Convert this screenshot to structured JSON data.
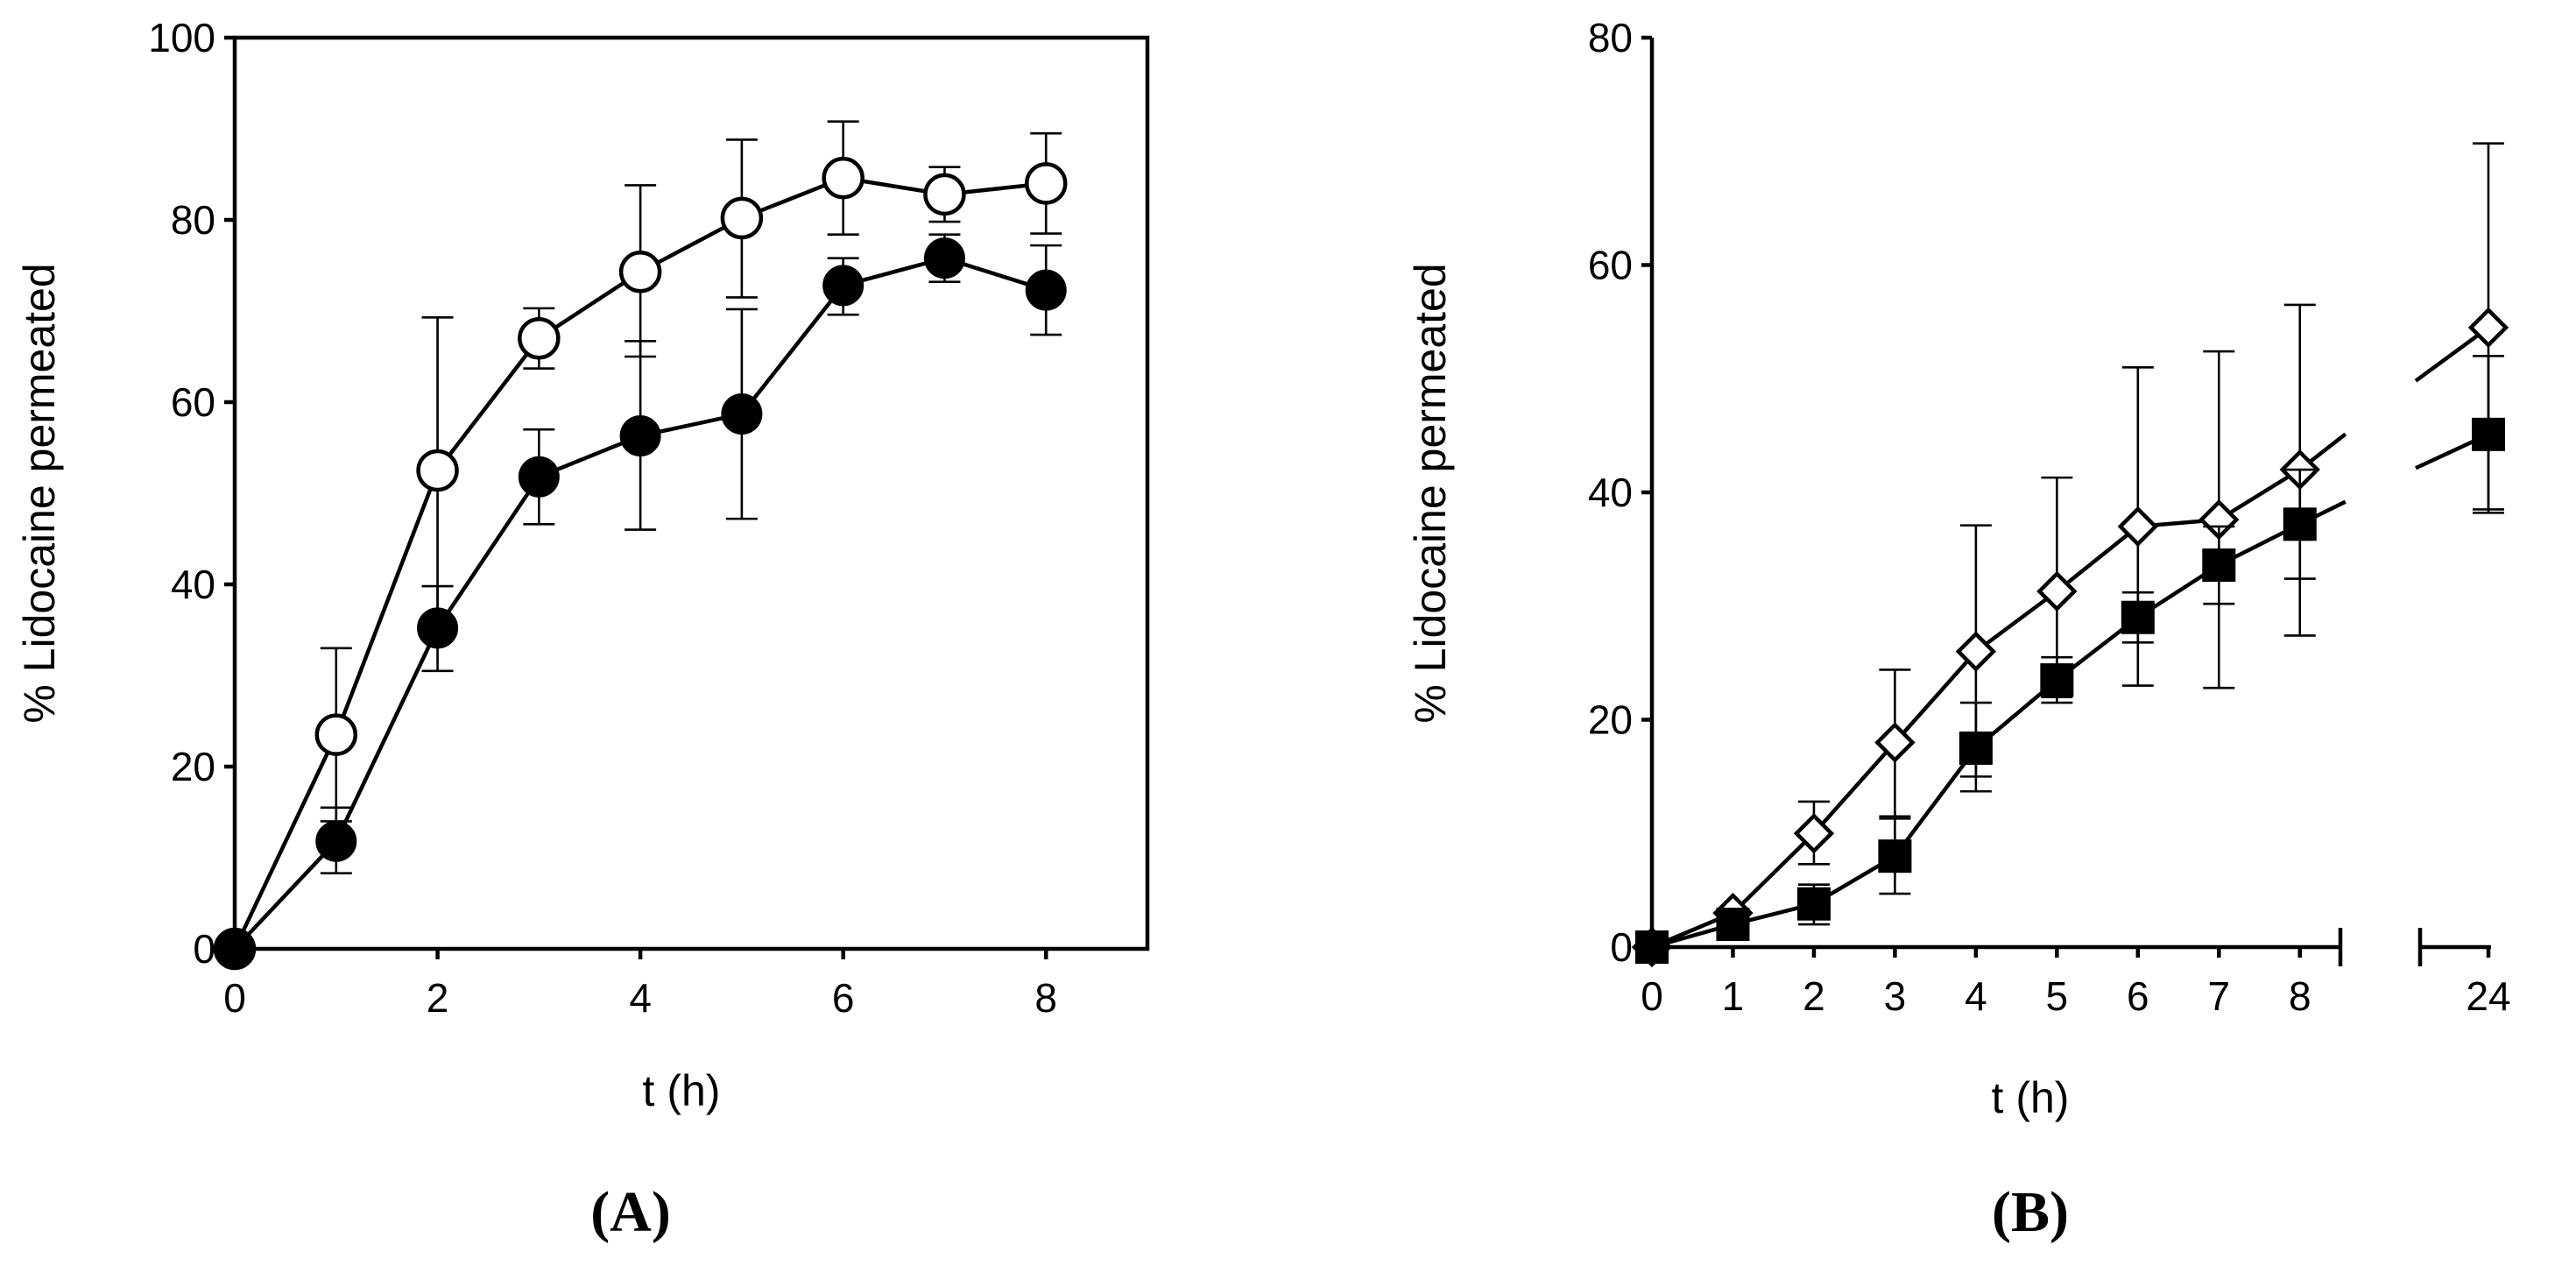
{
  "chart_data": [
    {
      "id": "A",
      "type": "line",
      "panel_label": "(A)",
      "title": "",
      "xlabel": "t (h)",
      "ylabel": "% Lidocaine permeated",
      "xlim": [
        0,
        9
      ],
      "ylim": [
        0,
        100
      ],
      "xticks": [
        0,
        2,
        4,
        6,
        8
      ],
      "yticks": [
        0,
        20,
        40,
        60,
        80,
        100
      ],
      "grid": false,
      "series": [
        {
          "name": "open circles",
          "marker": "circle-open",
          "x": [
            0,
            1,
            2,
            3,
            4,
            5,
            6,
            7,
            8
          ],
          "values": [
            0,
            23.5,
            52.5,
            67,
            74.3,
            80.2,
            84.6,
            82.8,
            84
          ],
          "err_upper": [
            0,
            33,
            69.3,
            70.3,
            83.8,
            88.8,
            90.8,
            85.8,
            89.5
          ],
          "err_lower": [
            0,
            14,
            35.7,
            63.7,
            65,
            71.5,
            78.4,
            79.8,
            78.5
          ]
        },
        {
          "name": "filled circles",
          "marker": "circle-filled",
          "x": [
            0,
            1,
            2,
            3,
            4,
            5,
            6,
            7,
            8
          ],
          "values": [
            0,
            11.8,
            35.2,
            51.8,
            56.3,
            58.7,
            72.8,
            75.8,
            72.3
          ],
          "err_upper": [
            0,
            15.5,
            39.8,
            57,
            66.7,
            70.2,
            75.8,
            78.4,
            77.2
          ],
          "err_lower": [
            0,
            8.3,
            30.5,
            46.6,
            46,
            47.2,
            69.6,
            73.2,
            67.4
          ]
        }
      ]
    },
    {
      "id": "B",
      "type": "line",
      "panel_label": "(B)",
      "title": "",
      "xlabel": "t (h)",
      "ylabel": "% Lidocaine permeated",
      "xlim": [
        0,
        8.5
      ],
      "ylim": [
        0,
        80
      ],
      "x_axis_break": true,
      "xticks": [
        0,
        1,
        2,
        3,
        4,
        5,
        6,
        7,
        8,
        24
      ],
      "yticks": [
        0,
        20,
        40,
        60,
        80
      ],
      "grid": false,
      "series": [
        {
          "name": "open diamonds",
          "marker": "diamond-open",
          "x": [
            0,
            1,
            2,
            3,
            4,
            5,
            6,
            7,
            8,
            24
          ],
          "values": [
            0,
            3,
            10,
            18,
            26,
            31.3,
            37,
            37.6,
            42,
            54.5
          ],
          "err_upper": [
            0,
            3,
            12.8,
            24.4,
            37.1,
            41.3,
            51,
            52.4,
            56.5,
            70.7
          ],
          "err_lower": [
            0,
            3,
            7.3,
            11.5,
            15,
            22,
            23,
            22.8,
            27.4,
            38.5
          ]
        },
        {
          "name": "filled squares",
          "marker": "square-filled",
          "x": [
            0,
            1,
            2,
            3,
            4,
            5,
            6,
            7,
            8,
            24
          ],
          "values": [
            0,
            2,
            3.8,
            8,
            17.5,
            23.5,
            29,
            33.6,
            37.2,
            45.1
          ],
          "err_upper": [
            0,
            2,
            5.5,
            11.3,
            21.5,
            25.5,
            31.2,
            37,
            42,
            52
          ],
          "err_lower": [
            0,
            2,
            2,
            4.7,
            13.7,
            21.5,
            26.8,
            30.2,
            32.4,
            38.2
          ]
        }
      ]
    }
  ]
}
